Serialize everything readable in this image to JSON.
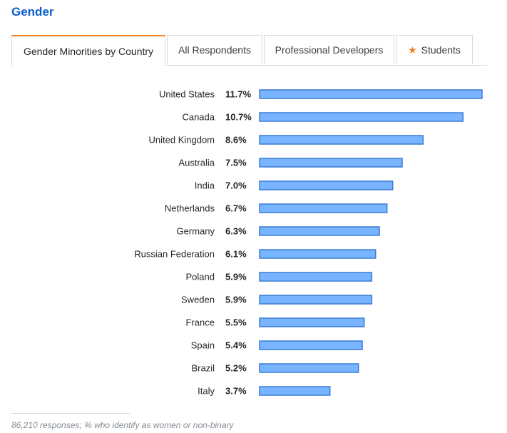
{
  "section_title": "Gender",
  "tabs": [
    {
      "label": "Gender Minorities by Country",
      "active": true,
      "icon": ""
    },
    {
      "label": "All Respondents",
      "active": false,
      "icon": ""
    },
    {
      "label": "Professional Developers",
      "active": false,
      "icon": ""
    },
    {
      "label": "Students",
      "active": false,
      "icon": "star-icon"
    }
  ],
  "colors": {
    "accent": "#f48024",
    "title": "#0c5ecf",
    "bar_fill": "#78b4ff",
    "bar_stroke": "#3a7bd5"
  },
  "chart_data": {
    "type": "bar",
    "orientation": "horizontal",
    "categories": [
      "United States",
      "Canada",
      "United Kingdom",
      "Australia",
      "India",
      "Netherlands",
      "Germany",
      "Russian Federation",
      "Poland",
      "Sweden",
      "France",
      "Spain",
      "Brazil",
      "Italy"
    ],
    "values": [
      11.7,
      10.7,
      8.6,
      7.5,
      7.0,
      6.7,
      6.3,
      6.1,
      5.9,
      5.9,
      5.5,
      5.4,
      5.2,
      3.7
    ],
    "value_labels": [
      "11.7%",
      "10.7%",
      "8.6%",
      "7.5%",
      "7.0%",
      "6.7%",
      "6.3%",
      "6.1%",
      "5.9%",
      "5.9%",
      "5.5%",
      "5.4%",
      "5.2%",
      "3.7%"
    ],
    "unit": "%",
    "xlim": [
      0,
      11.7
    ],
    "grid": false
  },
  "footnote": "86,210 responses; % who identify as women or non-binary"
}
